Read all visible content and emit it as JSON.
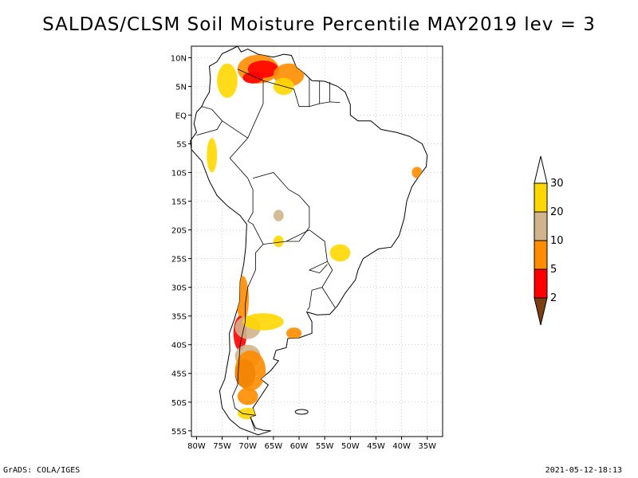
{
  "title": "SALDAS/CLSM Soil Moisture Percentile MAY2019 lev = 3",
  "footer": {
    "left": "GrADS: COLA/IGES",
    "right": "2021-05-12-18:13"
  },
  "map": {
    "region": "South America",
    "projection": "latlon",
    "lon_range": [
      -81,
      -32
    ],
    "lat_range": [
      -56,
      12
    ],
    "lon_ticks": [
      {
        "value": -80,
        "label": "80W"
      },
      {
        "value": -75,
        "label": "75W"
      },
      {
        "value": -70,
        "label": "70W"
      },
      {
        "value": -65,
        "label": "65W"
      },
      {
        "value": -60,
        "label": "60W"
      },
      {
        "value": -55,
        "label": "55W"
      },
      {
        "value": -50,
        "label": "50W"
      },
      {
        "value": -45,
        "label": "45W"
      },
      {
        "value": -40,
        "label": "40W"
      },
      {
        "value": -35,
        "label": "35W"
      }
    ],
    "lat_ticks": [
      {
        "value": 10,
        "label": "10N"
      },
      {
        "value": 5,
        "label": "5N"
      },
      {
        "value": 0,
        "label": "EQ"
      },
      {
        "value": -5,
        "label": "5S"
      },
      {
        "value": -10,
        "label": "10S"
      },
      {
        "value": -15,
        "label": "15S"
      },
      {
        "value": -20,
        "label": "20S"
      },
      {
        "value": -25,
        "label": "25S"
      },
      {
        "value": -30,
        "label": "30S"
      },
      {
        "value": -35,
        "label": "35S"
      },
      {
        "value": -40,
        "label": "40S"
      },
      {
        "value": -45,
        "label": "45S"
      },
      {
        "value": -50,
        "label": "50S"
      },
      {
        "value": -55,
        "label": "55S"
      }
    ],
    "grid": true,
    "background_color": "#ffffff",
    "outline_color": "#000000"
  },
  "colorbar": {
    "placement": "right",
    "bins": [
      {
        "color": "#7b3f14",
        "range": "<2"
      },
      {
        "color": "#ff0000",
        "range": "2-5"
      },
      {
        "color": "#ff8c00",
        "range": "5-10"
      },
      {
        "color": "#d2b48c",
        "range": "10-20"
      },
      {
        "color": "#ffd700",
        "range": "20-30"
      },
      {
        "color": "#ffffff",
        "range": ">30"
      }
    ],
    "labels": [
      "2",
      "5",
      "10",
      "20",
      "30"
    ]
  },
  "anomaly_patches": [
    {
      "lon": -68,
      "lat": 8,
      "rx": 4,
      "ry": 2.5,
      "color": "#ff8c00"
    },
    {
      "lon": -67,
      "lat": 8,
      "rx": 3,
      "ry": 1.5,
      "color": "#ff0000"
    },
    {
      "lon": -62,
      "lat": 7,
      "rx": 3,
      "ry": 2,
      "color": "#ff8c00"
    },
    {
      "lon": -74,
      "lat": 6,
      "rx": 2,
      "ry": 3,
      "color": "#ffd700"
    },
    {
      "lon": -69,
      "lat": 6.5,
      "rx": 2,
      "ry": 1,
      "color": "#ff0000"
    },
    {
      "lon": -63,
      "lat": 5,
      "rx": 2,
      "ry": 1.5,
      "color": "#ffd700"
    },
    {
      "lon": -71,
      "lat": -32,
      "rx": 1.2,
      "ry": 4,
      "color": "#ff8c00"
    },
    {
      "lon": -71.5,
      "lat": -38,
      "rx": 1.3,
      "ry": 3,
      "color": "#ff0000"
    },
    {
      "lon": -70,
      "lat": -37,
      "rx": 2.5,
      "ry": 2,
      "color": "#d2b48c"
    },
    {
      "lon": -67,
      "lat": -36,
      "rx": 4,
      "ry": 1.5,
      "color": "#ffd700"
    },
    {
      "lon": -61,
      "lat": -38,
      "rx": 1.5,
      "ry": 1,
      "color": "#ff8c00"
    },
    {
      "lon": -70,
      "lat": -42,
      "rx": 2.5,
      "ry": 2,
      "color": "#d2b48c"
    },
    {
      "lon": -70.5,
      "lat": -45,
      "rx": 2,
      "ry": 2.5,
      "color": "#7b3f14"
    },
    {
      "lon": -69.5,
      "lat": -44.5,
      "rx": 3,
      "ry": 3.5,
      "color": "#ff8c00"
    },
    {
      "lon": -70,
      "lat": -49,
      "rx": 2,
      "ry": 1.5,
      "color": "#ff8c00"
    },
    {
      "lon": -70,
      "lat": -52,
      "rx": 2,
      "ry": 1,
      "color": "#ffd700"
    },
    {
      "lon": -64,
      "lat": -17.5,
      "rx": 1,
      "ry": 1,
      "color": "#d2b48c"
    },
    {
      "lon": -64,
      "lat": -22,
      "rx": 1,
      "ry": 1,
      "color": "#ffd700"
    },
    {
      "lon": -52,
      "lat": -24,
      "rx": 2,
      "ry": 1.5,
      "color": "#ffd700"
    },
    {
      "lon": -37,
      "lat": -10,
      "rx": 1,
      "ry": 1,
      "color": "#ff8c00"
    },
    {
      "lon": -77,
      "lat": -7,
      "rx": 1,
      "ry": 3,
      "color": "#ffd700"
    }
  ]
}
